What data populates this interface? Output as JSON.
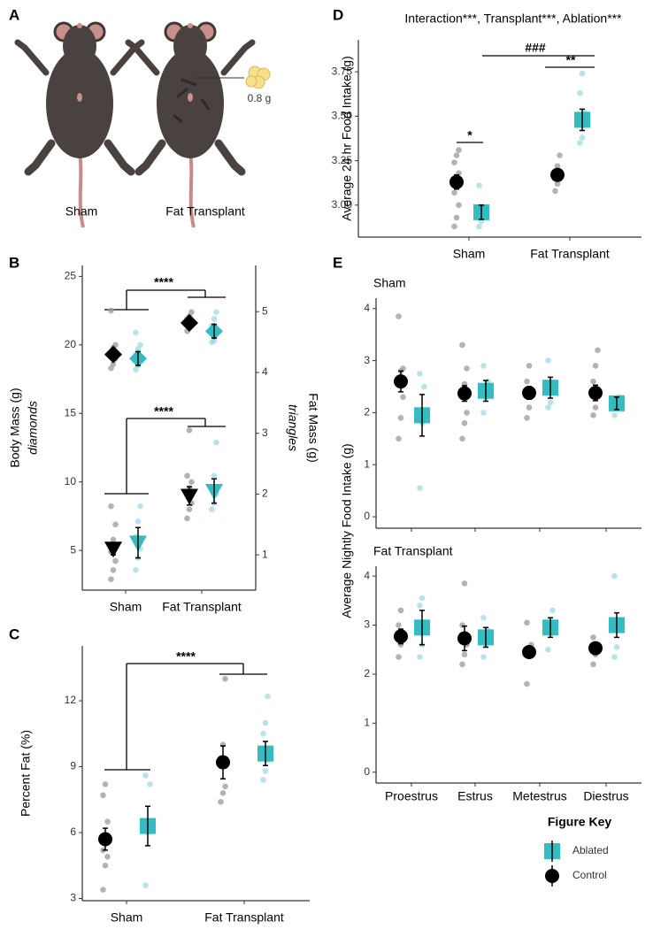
{
  "panel_a": {
    "letter": "A",
    "captions": [
      "Sham",
      "Fat Transplant"
    ],
    "dose": "0.8 g"
  },
  "chart_data": [
    {
      "type": "dot",
      "panel": "B",
      "categories": [
        "Sham",
        "Fat Transplant"
      ],
      "ylabel": "Body Mass (g)",
      "ylabel_note": "diamonds",
      "y2label": "Fat Mass (g)",
      "y2label_note": "triangles",
      "ylim": [
        2.1,
        25.8
      ],
      "yticks": [
        5,
        10,
        15,
        20,
        25
      ],
      "y2lim": [
        0.42,
        5.76
      ],
      "y2ticks": [
        1,
        2,
        3,
        4,
        5
      ],
      "annotations": [
        "****",
        "****"
      ],
      "series": [
        {
          "name": "Control",
          "color": "#000000",
          "point_color": "#999999",
          "marker": "diamond",
          "values": [
            19.3,
            21.6
          ],
          "errors": [
            0.4,
            0.4
          ],
          "points": [
            [
              18.3,
              18.6,
              19.0,
              19.4,
              19.8,
              20.0,
              22.5
            ],
            [
              21.0,
              21.3,
              21.6,
              21.9,
              22.1,
              22.4
            ]
          ]
        },
        {
          "name": "Ablated",
          "color": "#33bdc2",
          "point_color": "#9fdbe3",
          "marker": "diamond",
          "values": [
            19.0,
            21.0
          ],
          "errors": [
            0.5,
            0.5
          ],
          "points": [
            [
              18.2,
              18.5,
              18.9,
              19.3,
              19.7,
              20.0,
              20.9
            ],
            [
              20.2,
              20.3,
              20.9,
              21.4,
              21.9,
              22.4
            ]
          ]
        },
        {
          "name": "Control",
          "color": "#000000",
          "point_color": "#999999",
          "marker": "triangle",
          "axis": "y2",
          "values": [
            1.1,
            1.97
          ],
          "errors": [
            0.1,
            0.15
          ],
          "points": [
            [
              0.6,
              0.75,
              0.9,
              1.05,
              1.25,
              1.5,
              1.8
            ],
            [
              1.6,
              1.75,
              1.85,
              2.0,
              2.1,
              2.2,
              2.3,
              3.05
            ]
          ]
        },
        {
          "name": "Ablated",
          "color": "#33bdc2",
          "point_color": "#9fdbe3",
          "marker": "triangle",
          "axis": "y2",
          "values": [
            1.2,
            2.05
          ],
          "errors": [
            0.25,
            0.2
          ],
          "points": [
            [
              0.75,
              0.95,
              1.1,
              1.3,
              1.55,
              1.8
            ],
            [
              1.75,
              1.85,
              2.0,
              2.1,
              2.3,
              2.85
            ]
          ]
        }
      ]
    },
    {
      "type": "dot",
      "panel": "C",
      "categories": [
        "Sham",
        "Fat Transplant"
      ],
      "ylabel": "Percent Fat (%)",
      "ylim": [
        2.9,
        14.5
      ],
      "yticks": [
        3,
        6,
        9,
        12
      ],
      "annotations": [
        "****"
      ],
      "series": [
        {
          "name": "Control",
          "color": "#000000",
          "point_color": "#999999",
          "marker": "circle",
          "values": [
            5.7,
            9.2
          ],
          "errors": [
            0.5,
            0.75
          ],
          "points": [
            [
              3.4,
              4.5,
              4.9,
              5.2,
              5.5,
              6.5,
              7.7,
              8.2
            ],
            [
              7.4,
              7.8,
              8.1,
              9.4,
              10.0,
              13.0
            ]
          ]
        },
        {
          "name": "Ablated",
          "color": "#33bdc2",
          "point_color": "#9fdbe3",
          "marker": "square",
          "values": [
            6.3,
            9.6
          ],
          "errors": [
            0.9,
            0.55
          ],
          "points": [
            [
              3.6,
              6.0,
              8.2,
              8.6
            ],
            [
              8.4,
              8.8,
              9.3,
              10.5,
              11.0,
              12.2
            ]
          ]
        }
      ]
    },
    {
      "type": "dot",
      "panel": "D",
      "title": "Interaction***, Transplant***, Ablation***",
      "categories": [
        "Sham",
        "Fat Transplant"
      ],
      "ylabel": "Average 24 hr Food Intake (g)",
      "ylim": [
        2.82,
        3.93
      ],
      "yticks": [
        {
          "value": 3,
          "label": "3.00"
        },
        {
          "value": 3.25,
          "label": "3.25"
        },
        {
          "value": 3.5,
          "label": "3.50"
        },
        {
          "value": 3.75,
          "label": "3.75"
        }
      ],
      "annotations": [
        "*",
        "###",
        "**"
      ],
      "series": [
        {
          "name": "Control",
          "color": "#000000",
          "point_color": "#999999",
          "marker": "circle",
          "values": [
            3.13,
            3.17
          ],
          "errors": [
            0.04,
            0.03
          ],
          "points": [
            [
              2.88,
              2.93,
              3.0,
              3.07,
              3.12,
              3.18,
              3.24,
              3.28,
              3.31
            ],
            [
              3.08,
              3.12,
              3.16,
              3.18,
              3.22,
              3.28
            ]
          ]
        },
        {
          "name": "Ablated",
          "color": "#33bdc2",
          "point_color": "#9fdbe3",
          "marker": "square",
          "values": [
            2.96,
            3.48
          ],
          "errors": [
            0.04,
            0.06
          ],
          "points": [
            [
              2.88,
              2.91,
              2.97,
              3.11
            ],
            [
              3.35,
              3.38,
              3.52,
              3.63,
              3.74
            ]
          ]
        }
      ]
    },
    {
      "type": "dot",
      "panel": "E",
      "categories": [
        "Proestrus",
        "Estrus",
        "Metestrus",
        "Diestrus"
      ],
      "ylabel": "Average Nightly Food Intake (g)",
      "ylim": [
        -0.22,
        4.2
      ],
      "yticks": [
        0,
        1,
        2,
        3,
        4
      ],
      "legend_title": "Figure Key",
      "series": [
        {
          "name": "Control",
          "color": "#000000",
          "point_color": "#999999",
          "marker": "circle"
        },
        {
          "name": "Ablated",
          "color": "#33bdc2",
          "point_color": "#9fdbe3",
          "marker": "square"
        }
      ],
      "facets": [
        {
          "title": "Sham",
          "values": [
            [
              2.6,
              2.37,
              2.38,
              2.38
            ],
            [
              1.95,
              2.42,
              2.48,
              2.18
            ]
          ],
          "errors": [
            [
              0.2,
              0.15,
              0.12,
              0.15
            ],
            [
              0.4,
              0.2,
              0.2,
              0.12
            ]
          ],
          "points": [
            [
              [
                1.5,
                1.9,
                2.3,
                2.6,
                2.8,
                2.85,
                3.85
              ],
              [
                1.5,
                1.8,
                2.0,
                2.3,
                2.55,
                2.85,
                3.3
              ],
              [
                1.9,
                2.1,
                2.35,
                2.6,
                2.9
              ],
              [
                1.95,
                2.1,
                2.4,
                2.6,
                2.9,
                3.2
              ]
            ],
            [
              [
                0.55,
                1.8,
                2.5,
                2.75
              ],
              [
                2.0,
                2.3,
                2.6,
                2.9
              ],
              [
                2.1,
                2.2,
                2.5,
                3.0
              ],
              [
                1.95,
                2.2,
                2.3
              ]
            ]
          ]
        },
        {
          "title": "Fat Transplant",
          "values": [
            [
              2.77,
              2.73,
              2.45,
              2.53
            ],
            [
              2.95,
              2.75,
              2.95,
              3.0
            ]
          ],
          "errors": [
            [
              0.15,
              0.25,
              0.12,
              0.1
            ],
            [
              0.35,
              0.2,
              0.2,
              0.25
            ]
          ],
          "points": [
            [
              [
                2.35,
                2.6,
                2.8,
                3.0,
                3.3
              ],
              [
                2.2,
                2.4,
                2.6,
                3.0,
                3.85
              ],
              [
                1.8,
                2.4,
                2.6,
                3.05
              ],
              [
                2.2,
                2.4,
                2.6,
                2.75
              ]
            ],
            [
              [
                2.35,
                2.6,
                3.0,
                3.4,
                3.55
              ],
              [
                2.35,
                2.6,
                2.9,
                3.15
              ],
              [
                2.5,
                3.0,
                3.3
              ],
              [
                2.35,
                2.55,
                3.0,
                4.0
              ]
            ]
          ]
        }
      ]
    }
  ]
}
